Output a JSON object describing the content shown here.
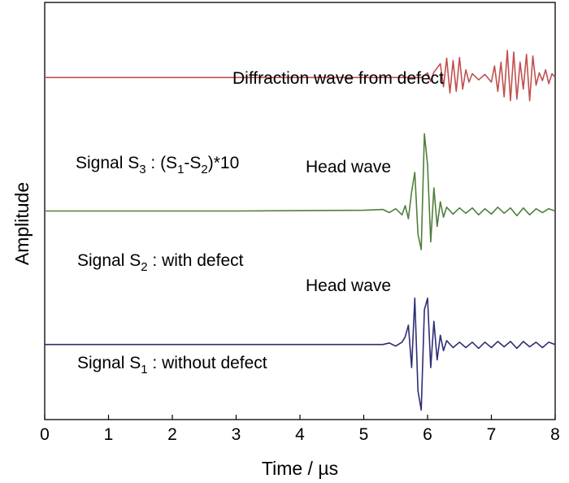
{
  "chart_data": {
    "type": "line",
    "title": "",
    "xlabel": "Time / µs",
    "ylabel": "Amplitude",
    "xlim": [
      0,
      8
    ],
    "x_ticks": [
      "0",
      "1",
      "2",
      "3",
      "4",
      "5",
      "6",
      "7",
      "8"
    ],
    "grid": false,
    "legend": "none",
    "annotations": {
      "s3_label": {
        "prefix": "Signal S",
        "sub": "3",
        "mid": " : (S",
        "sub1": "1",
        "dash": "-S",
        "sub2": "2",
        "suffix": ")*10"
      },
      "s2_label": {
        "prefix": "Signal S",
        "sub": "2",
        "suffix": " : with defect"
      },
      "s1_label": {
        "prefix": "Signal S",
        "sub": "1",
        "suffix": " : without defect"
      },
      "diffraction": "Diffraction wave from defect",
      "head_wave_upper": "Head wave",
      "head_wave_lower": "Head wave"
    },
    "series": [
      {
        "color": "#c0504d",
        "baseline": 0.82,
        "x": [
          0,
          5.9,
          5.95,
          6.0,
          6.05,
          6.1,
          6.2,
          6.25,
          6.3,
          6.35,
          6.4,
          6.45,
          6.5,
          6.55,
          6.6,
          6.65,
          6.7,
          6.8,
          6.9,
          7.0,
          7.05,
          7.1,
          7.15,
          7.2,
          7.25,
          7.3,
          7.35,
          7.4,
          7.45,
          7.5,
          7.55,
          7.6,
          7.65,
          7.7,
          7.75,
          7.8,
          7.85,
          7.9,
          7.95,
          8.0
        ],
        "y": [
          0,
          0,
          0.03,
          0.06,
          -0.05,
          0.07,
          0.18,
          -0.12,
          0.25,
          -0.2,
          0.22,
          -0.18,
          0.26,
          -0.15,
          0.1,
          -0.06,
          0.05,
          -0.03,
          0.04,
          -0.06,
          0.15,
          -0.18,
          0.2,
          -0.25,
          0.35,
          -0.3,
          0.33,
          -0.28,
          0.2,
          -0.15,
          0.3,
          -0.3,
          0.28,
          -0.1,
          0.06,
          -0.04,
          0.1,
          -0.08,
          0.05,
          0
        ]
      },
      {
        "color": "#4f7f3c",
        "baseline": 0.5,
        "x": [
          0,
          3.0,
          5.0,
          5.3,
          5.4,
          5.5,
          5.6,
          5.65,
          5.7,
          5.75,
          5.8,
          5.85,
          5.9,
          5.95,
          6.0,
          6.05,
          6.1,
          6.15,
          6.2,
          6.25,
          6.3,
          6.4,
          6.5,
          6.6,
          6.7,
          6.8,
          6.9,
          7.0,
          7.1,
          7.2,
          7.3,
          7.4,
          7.5,
          7.6,
          7.7,
          7.8,
          7.9,
          8.0
        ],
        "y": [
          0,
          0,
          0.01,
          0.02,
          -0.02,
          0.03,
          -0.05,
          0.07,
          -0.1,
          0.25,
          0.5,
          -0.3,
          -0.5,
          1.0,
          0.6,
          -0.4,
          0.3,
          -0.2,
          0.12,
          -0.08,
          0.05,
          -0.04,
          0.04,
          -0.03,
          0.04,
          -0.05,
          0.03,
          -0.04,
          0.05,
          -0.03,
          0.04,
          -0.06,
          0.04,
          -0.05,
          0.03,
          -0.02,
          0.03,
          0
        ]
      },
      {
        "color": "#2e2e75",
        "baseline": 0.18,
        "x": [
          0,
          5.3,
          5.4,
          5.5,
          5.6,
          5.65,
          5.7,
          5.75,
          5.8,
          5.85,
          5.9,
          5.95,
          6.0,
          6.05,
          6.1,
          6.15,
          6.2,
          6.25,
          6.3,
          6.4,
          6.5,
          6.6,
          6.7,
          6.8,
          6.9,
          7.0,
          7.1,
          7.2,
          7.3,
          7.4,
          7.5,
          7.6,
          7.7,
          7.8,
          7.9,
          8.0
        ],
        "y": [
          0,
          0,
          0.02,
          -0.02,
          0.03,
          0.1,
          0.25,
          -0.3,
          0.6,
          -0.6,
          -0.85,
          0.45,
          0.6,
          -0.3,
          0.3,
          -0.2,
          0.12,
          -0.08,
          0.05,
          -0.04,
          0.03,
          -0.04,
          0.03,
          -0.05,
          0.03,
          -0.04,
          0.04,
          -0.03,
          0.04,
          -0.05,
          0.04,
          -0.03,
          0.03,
          -0.04,
          0.03,
          0
        ]
      }
    ]
  }
}
